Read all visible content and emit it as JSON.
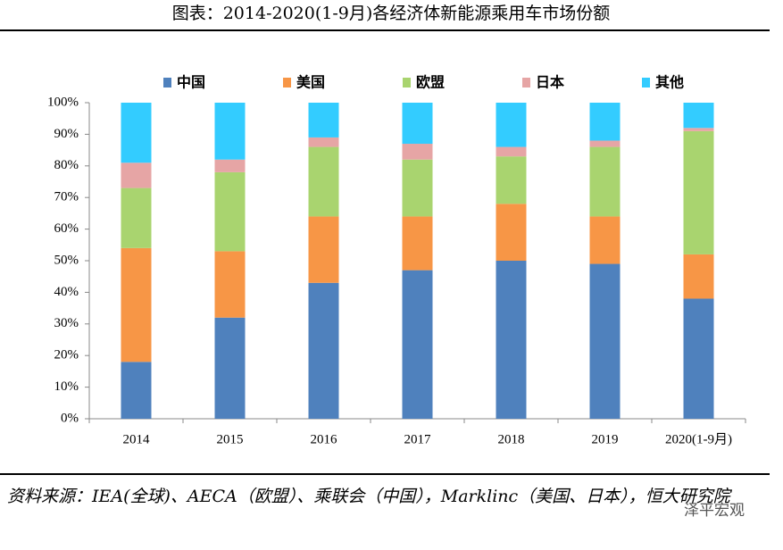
{
  "chart_data": {
    "type": "stacked_bar",
    "title": "图表：2014-2020(1-9月)各经济体新能源乘用车市场份额",
    "categories": [
      "2014",
      "2015",
      "2016",
      "2017",
      "2018",
      "2019",
      "2020(1-9月)"
    ],
    "series": [
      {
        "name": "中国",
        "color": "#4f81bd",
        "values": [
          18,
          32,
          43,
          47,
          50,
          49,
          38
        ]
      },
      {
        "name": "美国",
        "color": "#f79646",
        "values": [
          36,
          21,
          21,
          17,
          18,
          15,
          14
        ]
      },
      {
        "name": "欧盟",
        "color": "#a9d46f",
        "values": [
          19,
          25,
          22,
          18,
          15,
          22,
          39
        ]
      },
      {
        "name": "日本",
        "color": "#e6a5a5",
        "values": [
          8,
          4,
          3,
          5,
          3,
          2,
          1
        ]
      },
      {
        "name": "其他",
        "color": "#33ccff",
        "values": [
          19,
          18,
          11,
          13,
          14,
          12,
          8
        ]
      }
    ],
    "ylim": [
      0,
      100
    ],
    "yticks": [
      {
        "value": 0,
        "label": "0%"
      },
      {
        "value": 10,
        "label": "10%"
      },
      {
        "value": 20,
        "label": "20%"
      },
      {
        "value": 30,
        "label": "30%"
      },
      {
        "value": 40,
        "label": "40%"
      },
      {
        "value": 50,
        "label": "50%"
      },
      {
        "value": 60,
        "label": "60%"
      },
      {
        "value": 70,
        "label": "70%"
      },
      {
        "value": 80,
        "label": "80%"
      },
      {
        "value": 90,
        "label": "90%"
      },
      {
        "value": 100,
        "label": "100%"
      }
    ],
    "source": "资料来源：IEA(全球)、AECA（欧盟）、乘联会（中国），Marklinc（美国、日本），恒大研究院",
    "watermark": "泽平宏观"
  }
}
